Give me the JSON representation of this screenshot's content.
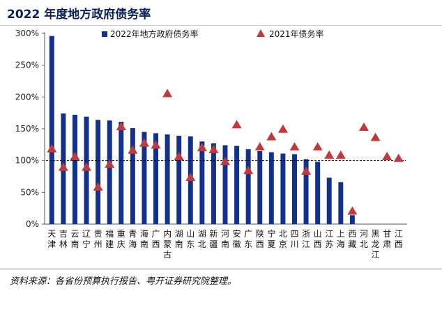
{
  "title": "2022 年度地方政府债务率",
  "source": "资料来源：各省份预算执行报告、粤开证券研究院整理。",
  "chart_data": {
    "type": "bar",
    "categories": [
      "天津",
      "吉林",
      "云南",
      "辽宁",
      "贵州",
      "福建",
      "重庆",
      "青海",
      "海南",
      "广西",
      "内蒙古",
      "湖南",
      "山东",
      "湖北",
      "新疆",
      "河南",
      "安徽",
      "广东",
      "陕西",
      "宁夏",
      "北京",
      "四川",
      "浙江",
      "山西",
      "江苏",
      "上海",
      "西藏",
      "河北",
      "黑龙江",
      "甘肃",
      "江西"
    ],
    "series": [
      {
        "name": "2022年地方政府债务率",
        "type": "bar",
        "color": "#12318f",
        "values": [
          296,
          174,
          172,
          169,
          164,
          163,
          161,
          151,
          145,
          143,
          141,
          139,
          138,
          130,
          127,
          124,
          123,
          118,
          115,
          113,
          111,
          110,
          102,
          98,
          73,
          66,
          14,
          null,
          null,
          null,
          null
        ]
      },
      {
        "name": "2021年债务率",
        "type": "scatter",
        "marker": "triangle",
        "color": "#c0393b",
        "values": [
          118,
          89,
          106,
          89,
          58,
          94,
          153,
          116,
          127,
          124,
          205,
          106,
          73,
          120,
          117,
          98,
          156,
          84,
          121,
          137,
          149,
          121,
          83,
          121,
          108,
          108,
          20,
          152,
          136,
          106,
          103
        ]
      }
    ],
    "ylim": [
      0,
      300
    ],
    "yticks": [
      "0%",
      "50%",
      "100%",
      "150%",
      "200%",
      "250%",
      "300%"
    ],
    "reference_line": 100,
    "legend_position": "top"
  }
}
